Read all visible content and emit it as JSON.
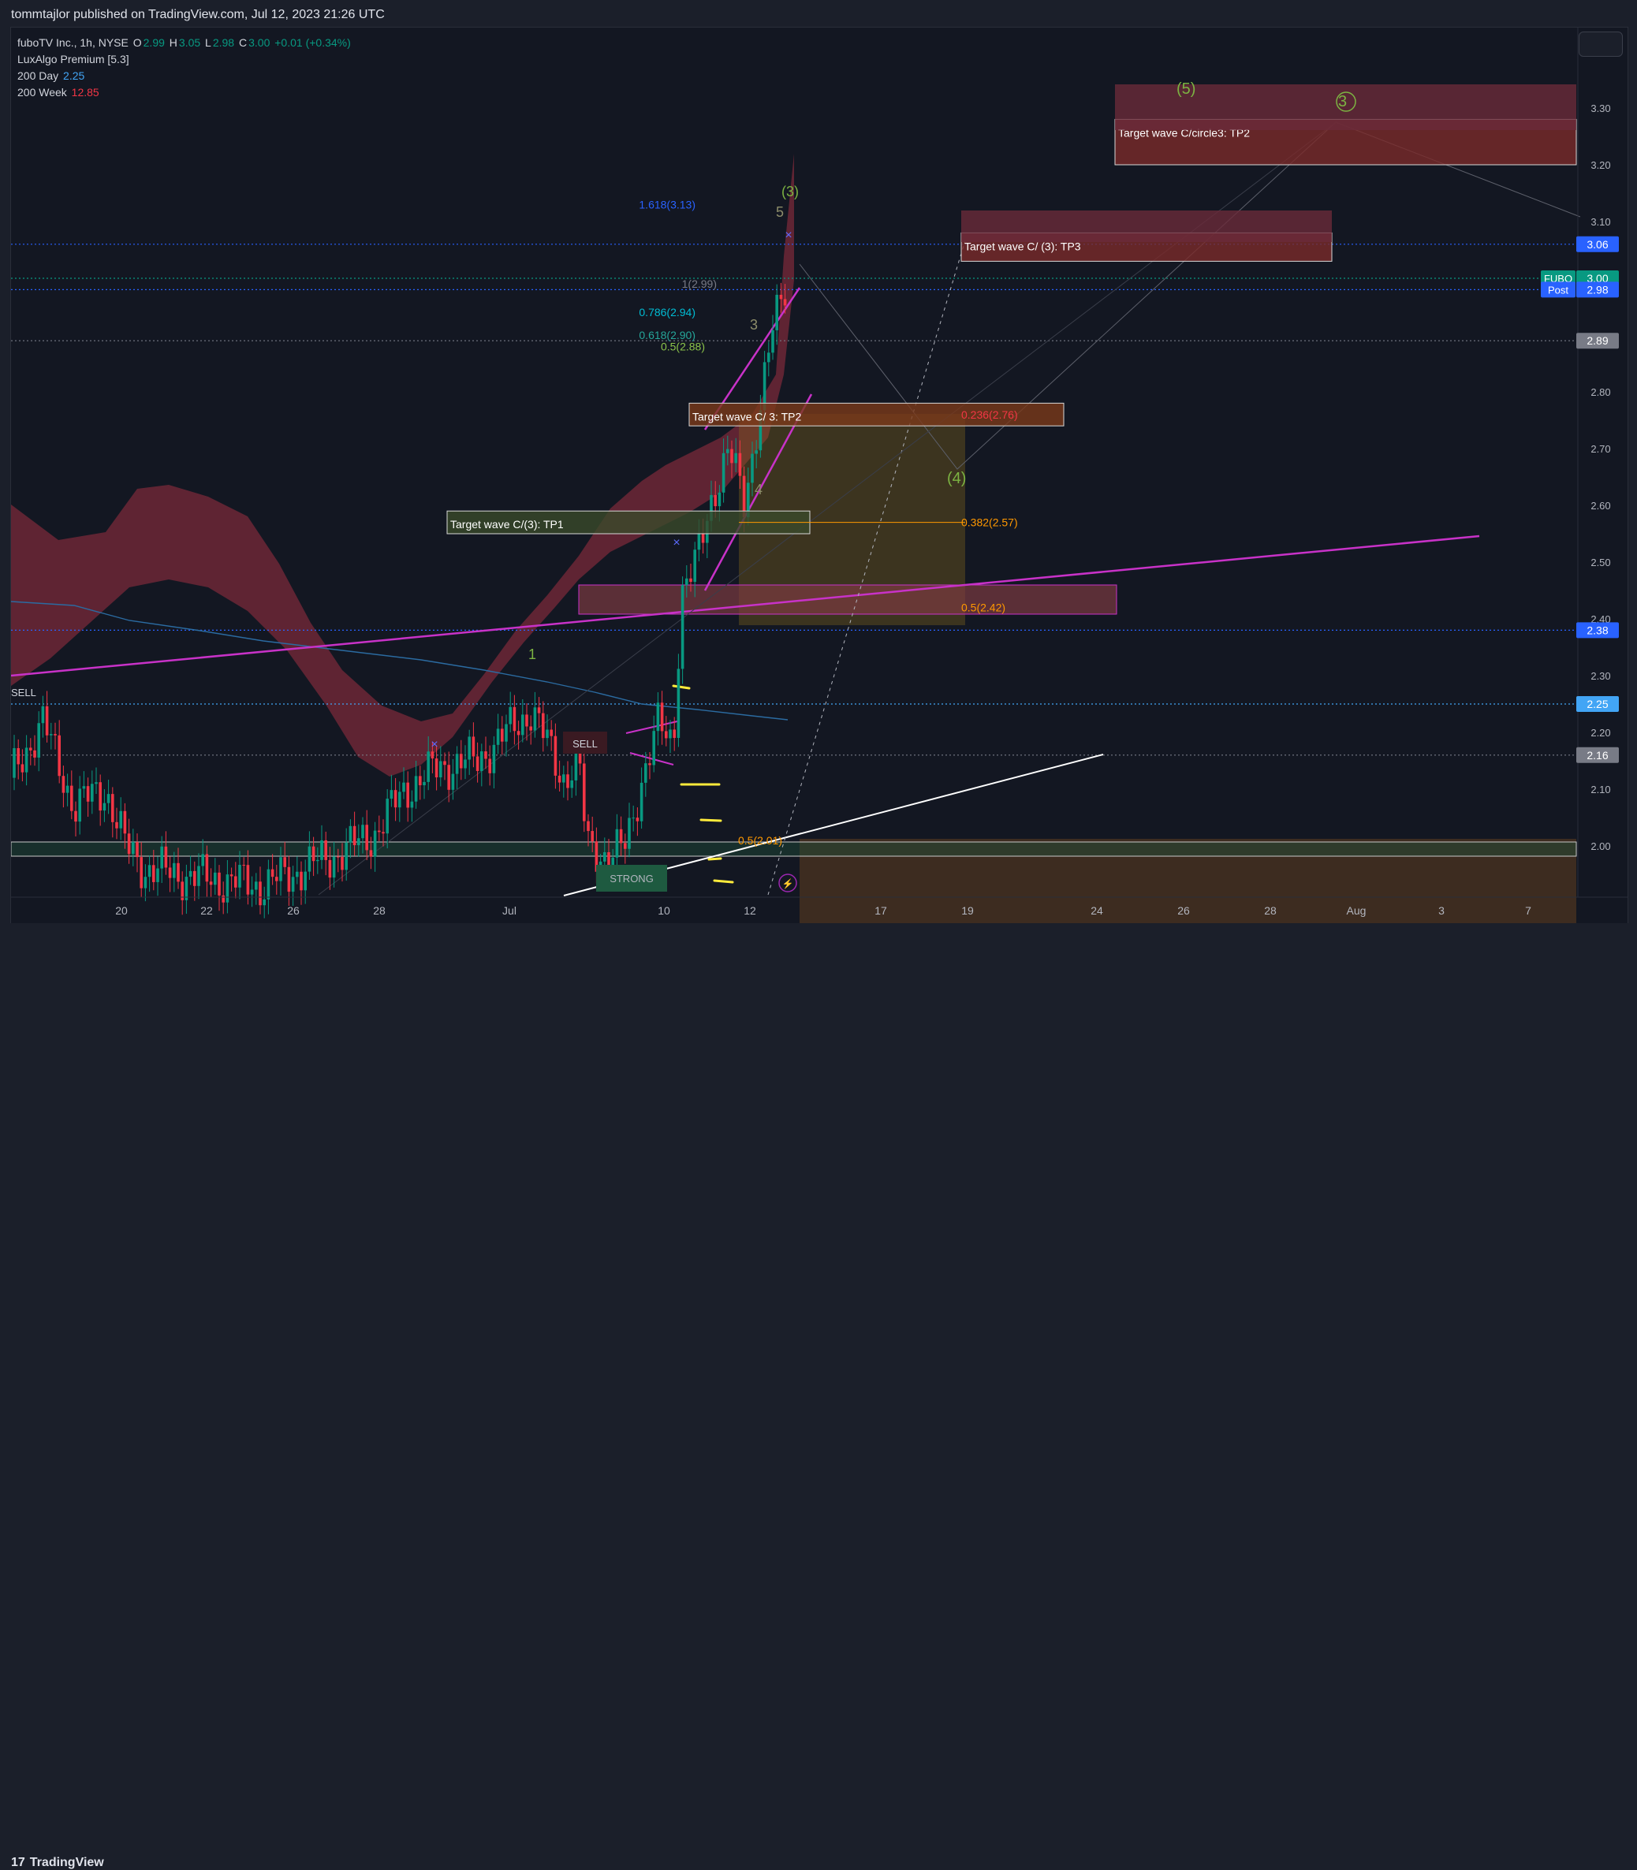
{
  "publisher": "tommtajlor published on TradingView.com, Jul 12, 2023 21:26 UTC",
  "brand": "TradingView",
  "legend": {
    "symbol": "fuboTV Inc., 1h, NYSE",
    "o_label": "O",
    "o": "2.99",
    "h_label": "H",
    "h": "3.05",
    "l_label": "L",
    "l": "2.98",
    "c_label": "C",
    "c": "3.00",
    "change": "+0.01 (+0.34%)",
    "indicator": "LuxAlgo Premium [5.3]",
    "ma200d_label": "200 Day",
    "ma200d": "2.25",
    "ma200w_label": "200 Week",
    "ma200w": "12.85"
  },
  "chart_data": {
    "type": "candlestick",
    "symbol": "FUBO",
    "interval": "1h",
    "ylim": [
      1.91,
      3.44
    ],
    "y_ticks": [
      "2.00",
      "2.10",
      "2.20",
      "2.30",
      "2.40",
      "2.50",
      "2.60",
      "2.70",
      "2.80",
      "3.10",
      "3.20",
      "3.30"
    ],
    "x_ticks": [
      "20",
      "22",
      "26",
      "28",
      "Jul",
      "10",
      "12",
      "17",
      "19",
      "24",
      "26",
      "28",
      "Aug",
      "3",
      "7"
    ],
    "price_tags": [
      {
        "label": "3.06",
        "value": 3.06,
        "color": "#2962ff"
      },
      {
        "label": "3.00",
        "prefix": "FUBO",
        "value": 3.0,
        "color": "#089981"
      },
      {
        "label": "2.98",
        "prefix": "Post",
        "value": 2.98,
        "color": "#2962ff"
      },
      {
        "label": "2.89",
        "value": 2.89,
        "color": "#787b86"
      },
      {
        "label": "2.38",
        "value": 2.38,
        "color": "#2962ff"
      },
      {
        "label": "2.25",
        "value": 2.25,
        "color": "#42a5f5"
      },
      {
        "label": "2.16",
        "value": 2.16,
        "color": "#787b86"
      }
    ],
    "fib_levels": [
      {
        "label": "1.618(3.13)",
        "value": 3.13,
        "color": "#2962ff"
      },
      {
        "label": "1(2.99)",
        "value": 2.99,
        "color": "#787b86"
      },
      {
        "label": "0.786(2.94)",
        "value": 2.94,
        "color": "#00bcd4"
      },
      {
        "label": "0.618(2.90)",
        "value": 2.9,
        "color": "#26a69a"
      },
      {
        "label": "0.5(2.88)",
        "value": 2.88,
        "color": "#8bc34a"
      },
      {
        "label": "0.236(2.76)",
        "value": 2.76,
        "color": "#f23645"
      },
      {
        "label": "0.382(2.57)",
        "value": 2.57,
        "color": "#ff9800"
      },
      {
        "label": "0.5(2.42)",
        "value": 2.42,
        "color": "#ff9800"
      },
      {
        "label": "0.5(2.01)",
        "value": 2.01,
        "color": "#ff9800"
      }
    ],
    "target_boxes": [
      {
        "label": "Target wave C/circle3: TP2",
        "top": 3.28,
        "bottom": 3.2
      },
      {
        "label": "Target wave C/ (3): TP3",
        "top": 3.08,
        "bottom": 3.03
      },
      {
        "label": "Target wave C/ 3: TP2",
        "top": 2.78,
        "bottom": 2.74
      },
      {
        "label": "Target wave C/(3): TP1",
        "top": 2.59,
        "bottom": 2.55
      }
    ],
    "wave_labels": [
      "(5)",
      "3",
      "(3)",
      "5",
      "3",
      "4",
      "(4)",
      "1"
    ],
    "signals": [
      "SELL",
      "SELL",
      "STRONG"
    ],
    "ohlc_last": {
      "open": 2.99,
      "high": 3.05,
      "low": 2.98,
      "close": 3.0
    },
    "colors": {
      "up": "#089981",
      "down": "#f23645",
      "band": "#7a2a3a",
      "trendline": "#c832c8",
      "ma200d": "#2b6ba1"
    }
  }
}
